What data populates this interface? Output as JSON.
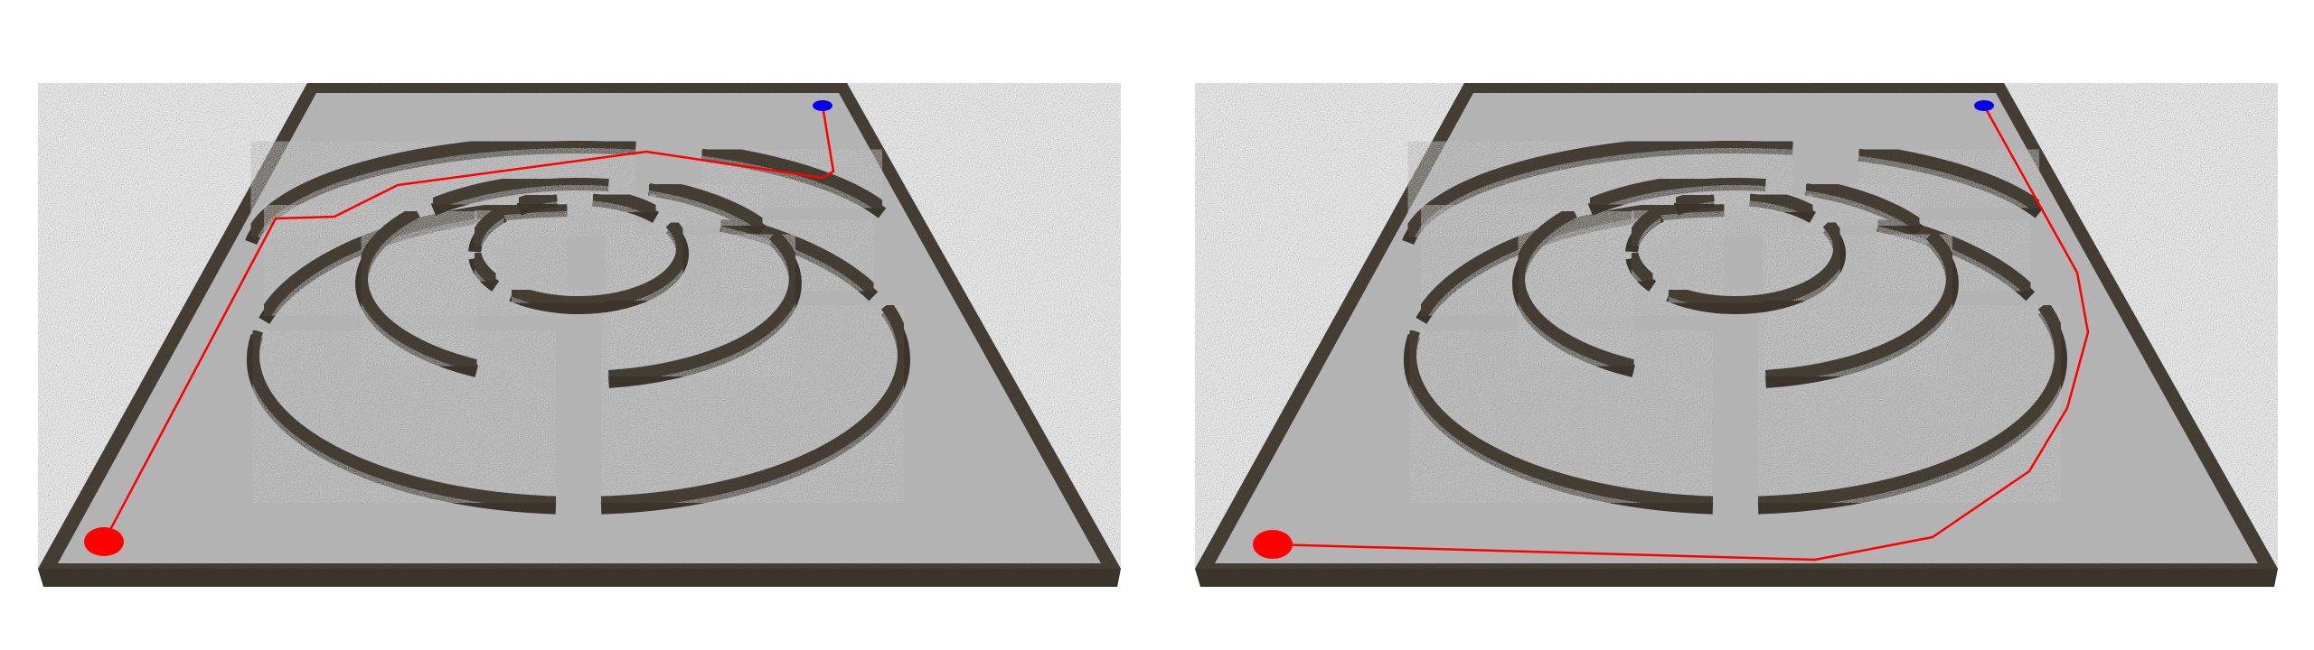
{
  "colors": {
    "background": "#ffffff",
    "floor": "#b3b3b3",
    "wall": "#4e473b",
    "wall_side": "#3a342b",
    "path": "#ff0000",
    "start_marker": "#ff0000",
    "goal_marker": "#0000ee"
  },
  "panels": [
    {
      "name": "left-maze-view",
      "path_route": "inner-corridor"
    },
    {
      "name": "right-maze-view",
      "path_route": "outer-corridor"
    }
  ]
}
